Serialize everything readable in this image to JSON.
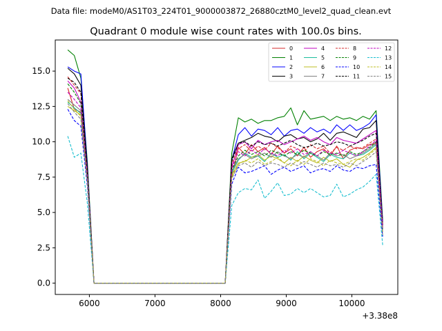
{
  "chart_data": {
    "type": "line",
    "supertitle": "Data file: modeM0/AS1T03_224T01_9000003872_26880cztM0_level2_quad_clean.evt",
    "title": "Quadrant 0 module wise count rates with 100.0s bins.",
    "xlabel": "",
    "ylabel": "",
    "x_offset_label": "+3.38e8",
    "xlim": [
      5480,
      10700
    ],
    "ylim": [
      -0.8,
      17.2
    ],
    "x_ticks": [
      6000,
      7000,
      8000,
      9000,
      10000
    ],
    "y_ticks": [
      0.0,
      2.5,
      5.0,
      7.5,
      10.0,
      12.5,
      15.0
    ],
    "y_tick_labels": [
      "0.0",
      "2.5",
      "5.0",
      "7.5",
      "10.0",
      "12.5",
      "15.0"
    ],
    "legend_position": "top-right",
    "x": [
      5670,
      5770,
      5870,
      5970,
      6070,
      6170,
      6270,
      6370,
      6470,
      6570,
      6670,
      6770,
      6870,
      6970,
      7070,
      7170,
      7270,
      7370,
      7470,
      7570,
      7670,
      7770,
      7870,
      7970,
      8070,
      8170,
      8270,
      8370,
      8470,
      8570,
      8670,
      8770,
      8870,
      8970,
      9070,
      9170,
      9270,
      9370,
      9470,
      9570,
      9670,
      9770,
      9870,
      9970,
      10070,
      10170,
      10270,
      10370,
      10470
    ],
    "series": [
      {
        "name": "0",
        "color": "#d62728",
        "dash": "solid",
        "values": [
          13.8,
          12.3,
          12.1,
          7.9,
          0,
          0,
          0,
          0,
          0,
          0,
          0,
          0,
          0,
          0,
          0,
          0,
          0,
          0,
          0,
          0,
          0,
          0,
          0,
          0,
          0,
          7.5,
          9.6,
          9.1,
          9.8,
          9.3,
          9.6,
          9.1,
          9.7,
          9.2,
          9.5,
          9.0,
          9.6,
          8.9,
          9.3,
          9.5,
          9.0,
          9.7,
          8.8,
          9.4,
          9.6,
          9.5,
          9.8,
          9.9,
          4.2
        ]
      },
      {
        "name": "1",
        "color": "#008000",
        "dash": "solid",
        "values": [
          16.5,
          16.1,
          14.5,
          8.5,
          0,
          0,
          0,
          0,
          0,
          0,
          0,
          0,
          0,
          0,
          0,
          0,
          0,
          0,
          0,
          0,
          0,
          0,
          0,
          0,
          0,
          9.2,
          11.7,
          11.4,
          11.6,
          11.3,
          11.5,
          11.5,
          11.7,
          11.8,
          12.4,
          11.2,
          12.2,
          11.6,
          11.7,
          11.8,
          11.5,
          11.8,
          11.6,
          11.7,
          11.5,
          11.8,
          11.6,
          12.2,
          4.5
        ]
      },
      {
        "name": "2",
        "color": "#0000ff",
        "dash": "solid",
        "values": [
          15.3,
          15.0,
          14.8,
          8.2,
          0,
          0,
          0,
          0,
          0,
          0,
          0,
          0,
          0,
          0,
          0,
          0,
          0,
          0,
          0,
          0,
          0,
          0,
          0,
          0,
          0,
          8.7,
          10.5,
          11.0,
          10.4,
          10.9,
          10.8,
          10.5,
          11.0,
          10.4,
          10.8,
          10.9,
          10.6,
          11.0,
          10.7,
          10.9,
          10.6,
          11.2,
          10.8,
          11.2,
          10.8,
          11.0,
          11.3,
          11.9,
          4.3
        ]
      },
      {
        "name": "3",
        "color": "#000000",
        "dash": "solid",
        "values": [
          15.2,
          14.8,
          14.0,
          8.0,
          0,
          0,
          0,
          0,
          0,
          0,
          0,
          0,
          0,
          0,
          0,
          0,
          0,
          0,
          0,
          0,
          0,
          0,
          0,
          0,
          0,
          8.8,
          9.9,
          10.1,
          10.3,
          10.6,
          10.4,
          10.3,
          10.0,
          10.4,
          10.5,
          10.2,
          10.3,
          10.0,
          10.2,
          10.6,
          10.1,
          10.6,
          10.7,
          10.5,
          10.3,
          10.9,
          11.0,
          11.5,
          4.1
        ]
      },
      {
        "name": "4",
        "color": "#bf00bf",
        "dash": "solid",
        "values": [
          14.3,
          13.8,
          12.8,
          7.5,
          0,
          0,
          0,
          0,
          0,
          0,
          0,
          0,
          0,
          0,
          0,
          0,
          0,
          0,
          0,
          0,
          0,
          0,
          0,
          0,
          0,
          8.2,
          9.8,
          10.0,
          9.5,
          10.1,
          9.8,
          10.0,
          10.1,
          9.8,
          10.0,
          10.2,
          10.4,
          10.1,
          10.3,
          10.0,
          9.8,
          10.3,
          10.1,
          10.0,
          9.9,
          10.2,
          10.5,
          10.8,
          4.0
        ]
      },
      {
        "name": "5",
        "color": "#1abc9c",
        "dash": "solid",
        "values": [
          12.8,
          12.4,
          12.0,
          7.4,
          0,
          0,
          0,
          0,
          0,
          0,
          0,
          0,
          0,
          0,
          0,
          0,
          0,
          0,
          0,
          0,
          0,
          0,
          0,
          0,
          0,
          7.8,
          8.7,
          9.2,
          8.9,
          9.0,
          8.6,
          9.2,
          8.9,
          9.1,
          8.7,
          9.3,
          8.8,
          9.2,
          8.9,
          8.6,
          9.1,
          8.9,
          8.8,
          9.2,
          9.0,
          9.1,
          9.4,
          9.8,
          3.8
        ]
      },
      {
        "name": "6",
        "color": "#bcbd22",
        "dash": "solid",
        "values": [
          12.5,
          12.2,
          11.9,
          7.3,
          0,
          0,
          0,
          0,
          0,
          0,
          0,
          0,
          0,
          0,
          0,
          0,
          0,
          0,
          0,
          0,
          0,
          0,
          0,
          0,
          0,
          7.6,
          8.5,
          8.6,
          8.9,
          9.1,
          8.7,
          9.0,
          8.8,
          8.5,
          8.9,
          8.6,
          9.0,
          8.7,
          8.5,
          8.9,
          8.6,
          8.8,
          8.4,
          8.2,
          8.7,
          8.9,
          9.2,
          9.6,
          3.6
        ]
      },
      {
        "name": "7",
        "color": "#808080",
        "dash": "solid",
        "values": [
          13.0,
          12.6,
          12.2,
          7.6,
          0,
          0,
          0,
          0,
          0,
          0,
          0,
          0,
          0,
          0,
          0,
          0,
          0,
          0,
          0,
          0,
          0,
          0,
          0,
          0,
          0,
          7.9,
          8.8,
          9.1,
          8.8,
          9.0,
          9.2,
          8.9,
          9.3,
          9.0,
          8.8,
          9.1,
          8.9,
          9.3,
          9.0,
          8.7,
          9.2,
          9.0,
          9.1,
          8.8,
          9.0,
          9.2,
          9.5,
          9.9,
          3.9
        ]
      },
      {
        "name": "8",
        "color": "#d62728",
        "dash": "dashed",
        "values": [
          14.6,
          14.0,
          13.4,
          7.8,
          0,
          0,
          0,
          0,
          0,
          0,
          0,
          0,
          0,
          0,
          0,
          0,
          0,
          0,
          0,
          0,
          0,
          0,
          0,
          0,
          0,
          8.4,
          9.5,
          9.8,
          9.3,
          9.7,
          9.4,
          9.9,
          9.6,
          9.2,
          9.7,
          9.5,
          9.3,
          9.8,
          9.5,
          9.7,
          9.2,
          9.6,
          9.4,
          9.7,
          9.5,
          9.6,
          9.9,
          10.2,
          4.0
        ]
      },
      {
        "name": "9",
        "color": "#008000",
        "dash": "dashed",
        "values": [
          14.1,
          13.5,
          12.7,
          7.5,
          0,
          0,
          0,
          0,
          0,
          0,
          0,
          0,
          0,
          0,
          0,
          0,
          0,
          0,
          0,
          0,
          0,
          0,
          0,
          0,
          0,
          8.0,
          9.0,
          9.4,
          9.1,
          9.3,
          9.0,
          9.4,
          9.2,
          9.0,
          9.3,
          9.1,
          9.4,
          9.2,
          9.0,
          9.3,
          9.1,
          9.2,
          9.0,
          9.3,
          9.1,
          9.3,
          9.6,
          10.0,
          3.7
        ]
      },
      {
        "name": "10",
        "color": "#0000ff",
        "dash": "dashed",
        "values": [
          12.3,
          11.5,
          11.1,
          6.8,
          0,
          0,
          0,
          0,
          0,
          0,
          0,
          0,
          0,
          0,
          0,
          0,
          0,
          0,
          0,
          0,
          0,
          0,
          0,
          0,
          0,
          7.0,
          8.2,
          7.8,
          7.9,
          8.1,
          8.3,
          7.7,
          8.0,
          8.2,
          7.9,
          8.1,
          8.3,
          7.8,
          8.0,
          8.1,
          7.9,
          8.3,
          8.0,
          7.9,
          8.2,
          8.1,
          8.3,
          8.4,
          3.3
        ]
      },
      {
        "name": "11",
        "color": "#000000",
        "dash": "dashed",
        "values": [
          14.5,
          14.2,
          13.5,
          7.8,
          0,
          0,
          0,
          0,
          0,
          0,
          0,
          0,
          0,
          0,
          0,
          0,
          0,
          0,
          0,
          0,
          0,
          0,
          0,
          0,
          0,
          8.6,
          9.9,
          10.0,
          9.7,
          10.0,
          9.8,
          9.9,
          9.7,
          9.9,
          10.1,
          9.8,
          9.6,
          9.7,
          9.9,
          9.7,
          9.8,
          10.0,
          9.9,
          9.7,
          9.9,
          10.1,
          10.4,
          10.6,
          4.1
        ]
      },
      {
        "name": "12",
        "color": "#bf00bf",
        "dash": "dashed",
        "values": [
          13.5,
          13.0,
          12.4,
          7.6,
          0,
          0,
          0,
          0,
          0,
          0,
          0,
          0,
          0,
          0,
          0,
          0,
          0,
          0,
          0,
          0,
          0,
          0,
          0,
          0,
          0,
          8.1,
          9.3,
          9.0,
          9.4,
          9.1,
          9.5,
          9.2,
          9.0,
          9.4,
          9.2,
          9.5,
          9.1,
          9.3,
          9.0,
          9.4,
          9.2,
          9.1,
          9.4,
          9.2,
          9.0,
          9.3,
          9.7,
          10.1,
          3.9
        ]
      },
      {
        "name": "13",
        "color": "#17becf",
        "dash": "dashed",
        "values": [
          10.4,
          8.9,
          9.2,
          5.6,
          0,
          0,
          0,
          0,
          0,
          0,
          0,
          0,
          0,
          0,
          0,
          0,
          0,
          0,
          0,
          0,
          0,
          0,
          0,
          0,
          0,
          5.5,
          6.4,
          6.7,
          6.6,
          7.3,
          6.0,
          6.5,
          7.1,
          6.2,
          6.3,
          6.7,
          6.4,
          6.7,
          6.4,
          6.1,
          6.2,
          7.0,
          6.1,
          6.3,
          6.6,
          6.8,
          7.2,
          7.7,
          2.7
        ]
      },
      {
        "name": "14",
        "color": "#bcbd22",
        "dash": "dashed",
        "values": [
          12.9,
          12.3,
          11.8,
          7.2,
          0,
          0,
          0,
          0,
          0,
          0,
          0,
          0,
          0,
          0,
          0,
          0,
          0,
          0,
          0,
          0,
          0,
          0,
          0,
          0,
          0,
          7.5,
          8.4,
          8.7,
          8.5,
          8.8,
          8.4,
          8.6,
          8.9,
          8.5,
          8.3,
          8.7,
          8.4,
          8.8,
          8.6,
          8.3,
          8.7,
          8.5,
          8.4,
          8.6,
          8.8,
          8.7,
          9.1,
          9.5,
          3.5
        ]
      },
      {
        "name": "15",
        "color": "#808080",
        "dash": "dashed",
        "values": [
          12.7,
          12.1,
          11.6,
          7.1,
          0,
          0,
          0,
          0,
          0,
          0,
          0,
          0,
          0,
          0,
          0,
          0,
          0,
          0,
          0,
          0,
          0,
          0,
          0,
          0,
          0,
          7.4,
          8.3,
          8.5,
          8.2,
          8.6,
          8.3,
          8.5,
          8.4,
          8.2,
          8.5,
          8.3,
          8.6,
          8.4,
          8.2,
          8.5,
          8.3,
          8.4,
          8.2,
          8.5,
          8.3,
          8.6,
          8.9,
          9.3,
          3.4
        ]
      }
    ]
  }
}
